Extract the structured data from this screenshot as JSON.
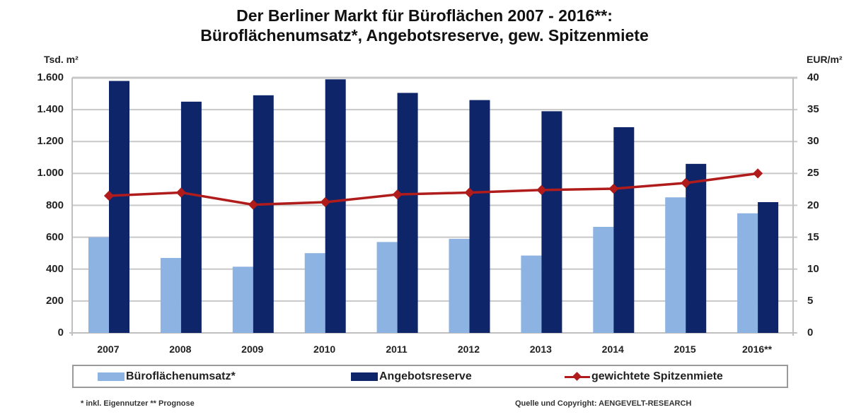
{
  "title": {
    "line1": "Der Berliner Markt für Büroflächen 2007 - 2016**:",
    "line2": "Büroflächenumsatz*, Angebotsreserve, gew. Spitzenmiete"
  },
  "axes": {
    "left_unit": "Tsd. m²",
    "right_unit": "EUR/m²",
    "left_ticks": [
      "0",
      "200",
      "400",
      "600",
      "800",
      "1.000",
      "1.200",
      "1.400",
      "1.600"
    ],
    "right_ticks": [
      "0",
      "5",
      "10",
      "15",
      "20",
      "25",
      "30",
      "35",
      "40"
    ]
  },
  "legend": {
    "items": [
      {
        "label": "Büroflächenumsatz*",
        "color": "#8db3e2",
        "kind": "bar"
      },
      {
        "label": "Angebotsreserve",
        "color": "#0e2569",
        "kind": "bar"
      },
      {
        "label": "gewichtete Spitzenmiete",
        "color": "#b01c1c",
        "kind": "line"
      }
    ]
  },
  "footnotes": {
    "left": "* inkl. Eigennutzer ** Prognose",
    "right": "Quelle und Copyright: AENGEVELT-RESEARCH"
  },
  "colors": {
    "light_bar": "#8db3e2",
    "dark_bar": "#0e2569",
    "line": "#b01c1c",
    "grid": "#c8c8c8"
  },
  "chart_data": {
    "type": "bar",
    "title": "Der Berliner Markt für Büroflächen 2007 - 2016**: Büroflächenumsatz*, Angebotsreserve, gew. Spitzenmiete",
    "categories": [
      "2007",
      "2008",
      "2009",
      "2010",
      "2011",
      "2012",
      "2013",
      "2014",
      "2015",
      "2016**"
    ],
    "series": [
      {
        "name": "Büroflächenumsatz*",
        "type": "bar",
        "axis": "left",
        "color": "#8db3e2",
        "values": [
          600,
          470,
          415,
          500,
          570,
          590,
          485,
          665,
          850,
          750
        ]
      },
      {
        "name": "Angebotsreserve",
        "type": "bar",
        "axis": "left",
        "color": "#0e2569",
        "values": [
          1580,
          1450,
          1490,
          1590,
          1505,
          1460,
          1390,
          1290,
          1060,
          820
        ]
      },
      {
        "name": "gewichtete Spitzenmiete",
        "type": "line",
        "axis": "right",
        "color": "#b01c1c",
        "values": [
          21.5,
          22.0,
          20.1,
          20.5,
          21.7,
          22.0,
          22.4,
          22.6,
          23.5,
          25.0
        ]
      }
    ],
    "xlabel": "",
    "ylabel": "Tsd. m²",
    "ylabel_right": "EUR/m²",
    "ylim": [
      0,
      1600
    ],
    "ylim_right": [
      0,
      40
    ],
    "grid": true,
    "legend_position": "bottom"
  }
}
